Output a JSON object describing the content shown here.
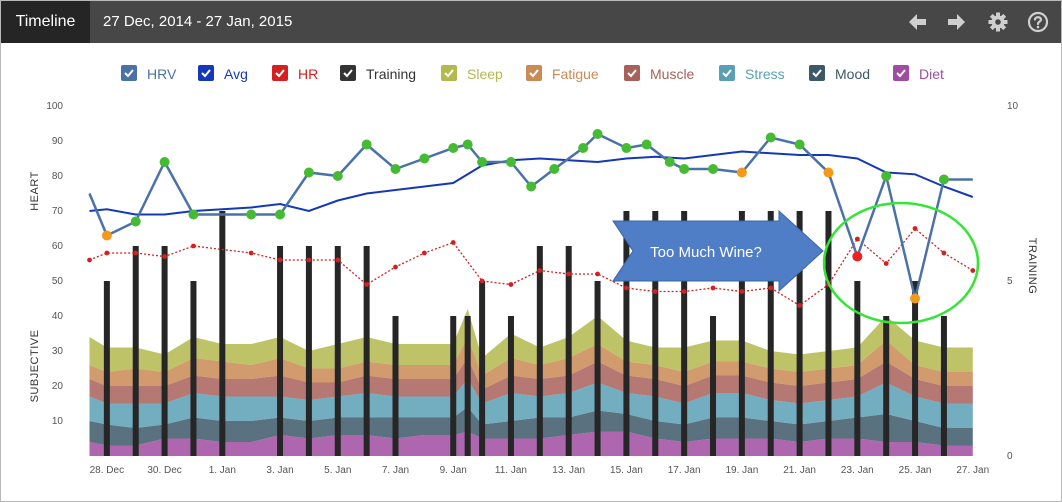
{
  "header": {
    "title": "Timeline",
    "date_range": "27 Dec, 2014 - 27 Jan, 2015",
    "tools": [
      {
        "name": "prev-arrow-icon"
      },
      {
        "name": "next-arrow-icon"
      },
      {
        "name": "gear-icon"
      },
      {
        "name": "help-icon"
      }
    ]
  },
  "legend": [
    {
      "label": "HRV",
      "color": "#4a72a8",
      "checked": true
    },
    {
      "label": "Avg",
      "color": "#1538b8",
      "checked": true
    },
    {
      "label": "HR",
      "color": "#d42020",
      "checked": true
    },
    {
      "label": "Training",
      "color": "#333333",
      "checked": true
    },
    {
      "label": "Sleep",
      "color": "#b4b84e",
      "checked": true
    },
    {
      "label": "Fatigue",
      "color": "#c98a55",
      "checked": true
    },
    {
      "label": "Muscle",
      "color": "#a8605a",
      "checked": true
    },
    {
      "label": "Stress",
      "color": "#5a9fb5",
      "checked": true
    },
    {
      "label": "Mood",
      "color": "#3d5868",
      "checked": true
    },
    {
      "label": "Diet",
      "color": "#a04ca0",
      "checked": true
    }
  ],
  "annotation": {
    "text": "Too Much Wine?",
    "arrow_color": "#4f7dc6",
    "highlight_color": "#33e633"
  },
  "chart_data": {
    "type": "line",
    "x_start": 27,
    "x_tick_labels": [
      {
        "x": 28,
        "label": "28. Dec"
      },
      {
        "x": 30,
        "label": "30. Dec"
      },
      {
        "x": 32,
        "label": "1. Jan"
      },
      {
        "x": 34,
        "label": "3. Jan"
      },
      {
        "x": 36,
        "label": "5. Jan"
      },
      {
        "x": 38,
        "label": "7. Jan"
      },
      {
        "x": 40,
        "label": "9. Jan"
      },
      {
        "x": 42,
        "label": "11. Jan"
      },
      {
        "x": 44,
        "label": "13. Jan"
      },
      {
        "x": 46,
        "label": "15. Jan"
      },
      {
        "x": 48,
        "label": "17. Jan"
      },
      {
        "x": 50,
        "label": "19. Jan"
      },
      {
        "x": 52,
        "label": "21. Jan"
      },
      {
        "x": 54,
        "label": "23. Jan"
      },
      {
        "x": 56,
        "label": "25. Jan"
      },
      {
        "x": 58,
        "label": "27. Jan"
      }
    ],
    "left_axis": {
      "ylim": [
        0,
        100
      ],
      "ticks": [
        10,
        20,
        30,
        40,
        50,
        60,
        70,
        80,
        90,
        100
      ],
      "labels": [
        "HEART",
        "SUBJECTIVE"
      ]
    },
    "right_axis": {
      "label": "TRAINING",
      "ylim": [
        0,
        10
      ],
      "ticks": [
        0,
        5,
        10
      ]
    },
    "hrv": {
      "x": [
        27.4,
        28,
        29,
        30,
        31,
        33,
        34,
        35,
        36,
        37,
        38,
        39,
        40,
        40.5,
        41,
        42,
        42.7,
        43.5,
        44.5,
        45,
        46,
        46.7,
        47.5,
        48,
        49,
        50,
        51,
        52,
        53,
        54,
        55,
        56,
        57,
        58
      ],
      "y": [
        75,
        63,
        67,
        84,
        69,
        69,
        69,
        81,
        80,
        89,
        82,
        85,
        88,
        89,
        84,
        84,
        77,
        82,
        88,
        92,
        88,
        89,
        84,
        82,
        82,
        81,
        91,
        89,
        81,
        57,
        80,
        45,
        79,
        79
      ],
      "point_colors": [
        "none",
        "#f39a1b",
        "#44bb33",
        "#44bb33",
        "#44bb33",
        "#44bb33",
        "#44bb33",
        "#44bb33",
        "#44bb33",
        "#44bb33",
        "#44bb33",
        "#44bb33",
        "#44bb33",
        "#44bb33",
        "#44bb33",
        "#44bb33",
        "#44bb33",
        "#44bb33",
        "#44bb33",
        "#44bb33",
        "#44bb33",
        "#44bb33",
        "#44bb33",
        "#44bb33",
        "#44bb33",
        "#f39a1b",
        "#44bb33",
        "#44bb33",
        "#f39a1b",
        "#ee2020",
        "#44bb33",
        "#f39a1b",
        "#44bb33",
        "none"
      ]
    },
    "avg": {
      "x": [
        27.4,
        28,
        29,
        30,
        31,
        32,
        33,
        34,
        35,
        36,
        37,
        38,
        39,
        40,
        41,
        42,
        43,
        44,
        45,
        46,
        47,
        48,
        49,
        50,
        51,
        52,
        53,
        54,
        55,
        56,
        57,
        58
      ],
      "y": [
        70,
        70.5,
        69,
        69,
        70,
        70.5,
        71,
        72,
        70,
        73,
        75,
        76,
        77,
        78,
        83,
        84.5,
        85,
        84.5,
        84,
        85,
        85.5,
        85,
        86,
        87,
        86.5,
        86,
        86,
        85,
        81,
        80.5,
        77,
        74
      ]
    },
    "hr": {
      "x": [
        27.4,
        28,
        29,
        30,
        31,
        33,
        34,
        35,
        36,
        37,
        38,
        39,
        40,
        41,
        42,
        43,
        44,
        45,
        46,
        47,
        48,
        49,
        50,
        51,
        52,
        53,
        54,
        55,
        56,
        57,
        58
      ],
      "y": [
        56,
        58,
        58,
        57,
        60,
        58,
        56,
        56,
        56,
        49,
        54,
        58,
        61,
        50,
        49,
        53,
        52,
        52,
        48,
        47,
        47,
        48,
        47,
        48,
        43,
        49,
        62,
        55,
        65,
        58,
        53
      ]
    },
    "training": {
      "x": [
        28,
        29,
        30,
        31,
        32,
        34,
        35,
        36,
        37,
        38,
        40,
        40.5,
        41,
        42,
        43,
        44,
        45,
        46,
        47,
        48,
        49,
        50,
        51,
        52,
        53,
        54,
        55,
        56,
        57
      ],
      "y": [
        5,
        6,
        6,
        5,
        7,
        6,
        6,
        6,
        6,
        4,
        4,
        4,
        5,
        4,
        6,
        6,
        5,
        7,
        7,
        7,
        4,
        7,
        7,
        7,
        7,
        5,
        4,
        5,
        4
      ]
    },
    "subjective_x": [
      27.4,
      28,
      29,
      30,
      31,
      32,
      33,
      34,
      35,
      36,
      37,
      38,
      39,
      40,
      40.5,
      41,
      42,
      43,
      44,
      45,
      46,
      47,
      48,
      49,
      50,
      51,
      52,
      53,
      54,
      55,
      56,
      57,
      58
    ],
    "subjective": [
      {
        "name": "Diet",
        "color": "#a04ca0",
        "values": [
          4,
          3,
          3,
          5,
          5,
          4,
          4,
          6,
          5,
          6,
          6,
          5,
          6,
          6,
          7,
          5,
          5,
          5,
          6,
          7,
          7,
          5,
          4,
          5,
          5,
          5,
          4,
          5,
          5,
          4,
          4,
          3,
          3
        ]
      },
      {
        "name": "Mood",
        "color": "#3d5868",
        "values": [
          6,
          6,
          5,
          4,
          6,
          6,
          6,
          5,
          5,
          5,
          5,
          6,
          5,
          5,
          7,
          4,
          5,
          6,
          5,
          6,
          5,
          5,
          5,
          6,
          6,
          5,
          5,
          5,
          6,
          8,
          6,
          5,
          5
        ]
      },
      {
        "name": "Stress",
        "color": "#5a9fb5",
        "values": [
          7,
          6,
          7,
          6,
          7,
          7,
          7,
          6,
          6,
          6,
          7,
          6,
          6,
          6,
          8,
          6,
          8,
          6,
          7,
          8,
          6,
          7,
          6,
          7,
          7,
          6,
          6,
          6,
          6,
          9,
          7,
          7,
          7
        ]
      },
      {
        "name": "Muscle",
        "color": "#a8605a",
        "values": [
          5,
          5,
          5,
          5,
          5,
          5,
          5,
          6,
          5,
          4,
          5,
          5,
          5,
          5,
          6,
          4,
          5,
          5,
          5,
          6,
          5,
          5,
          5,
          5,
          5,
          5,
          5,
          5,
          5,
          6,
          5,
          5,
          5
        ]
      },
      {
        "name": "Fatigue",
        "color": "#c98a55",
        "values": [
          4,
          4,
          5,
          4,
          5,
          5,
          4,
          5,
          4,
          4,
          4,
          4,
          4,
          4,
          6,
          4,
          5,
          4,
          5,
          5,
          4,
          4,
          4,
          4,
          4,
          4,
          4,
          4,
          4,
          6,
          4,
          4,
          4
        ]
      },
      {
        "name": "Sleep",
        "color": "#b4b84e",
        "values": [
          8,
          7,
          6,
          5,
          6,
          5,
          6,
          6,
          5,
          7,
          7,
          6,
          6,
          6,
          8,
          5,
          7,
          5,
          6,
          8,
          6,
          5,
          7,
          6,
          6,
          5,
          5,
          5,
          5,
          7,
          7,
          7,
          7
        ]
      }
    ]
  }
}
